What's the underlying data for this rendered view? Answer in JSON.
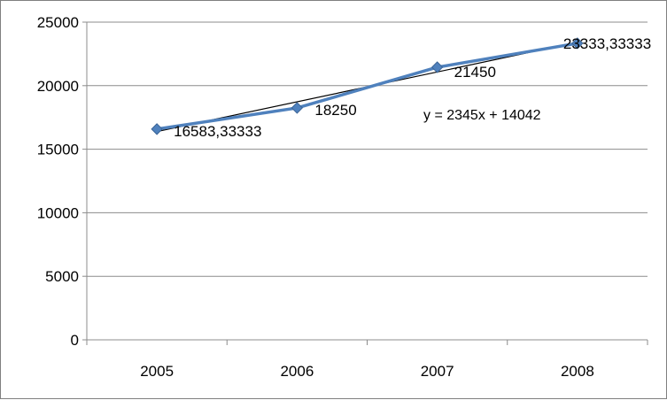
{
  "chart_data": {
    "type": "line",
    "categories": [
      "2005",
      "2006",
      "2007",
      "2008"
    ],
    "series": [
      {
        "values": [
          16583.33333,
          18250,
          21450,
          23333.33333
        ],
        "labels": [
          "16583,33333",
          "18250",
          "21450",
          "23333,33333"
        ],
        "color": "#4f81bd"
      }
    ],
    "trendline": {
      "type": "linear",
      "slope": 2345,
      "intercept": 14042,
      "equation": "y = 2345x + 14042",
      "color": "#000000"
    },
    "ylim": [
      0,
      25000
    ],
    "yticks": [
      "0",
      "5000",
      "10000",
      "15000",
      "20000",
      "25000"
    ],
    "grid": true,
    "legend": "none",
    "title": "",
    "xlabel": "",
    "ylabel": ""
  }
}
